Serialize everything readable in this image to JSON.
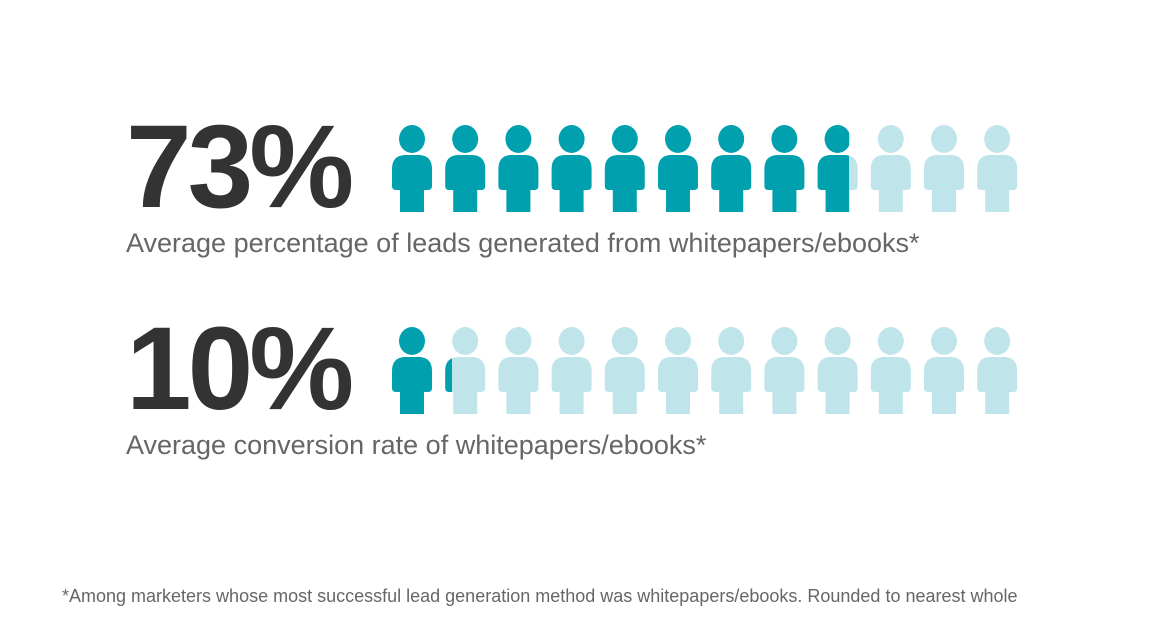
{
  "chart_data": {
    "type": "pictograph",
    "icon": "person-icon",
    "icons_per_row": 12,
    "colors": {
      "filled": "#00a0ae",
      "empty": "#bfe5ea",
      "text_dark": "#333333",
      "text_muted": "#666666"
    },
    "stats": [
      {
        "value_label": "73%",
        "value": 73,
        "caption": "Average percentage of leads generated from whitepapers/ebooks*"
      },
      {
        "value_label": "10%",
        "value": 10,
        "caption": "Average conversion rate of whitepapers/ebooks*"
      }
    ],
    "footnote": "*Among marketers whose most successful lead generation method was whitepapers/ebooks. Rounded to nearest whole"
  }
}
